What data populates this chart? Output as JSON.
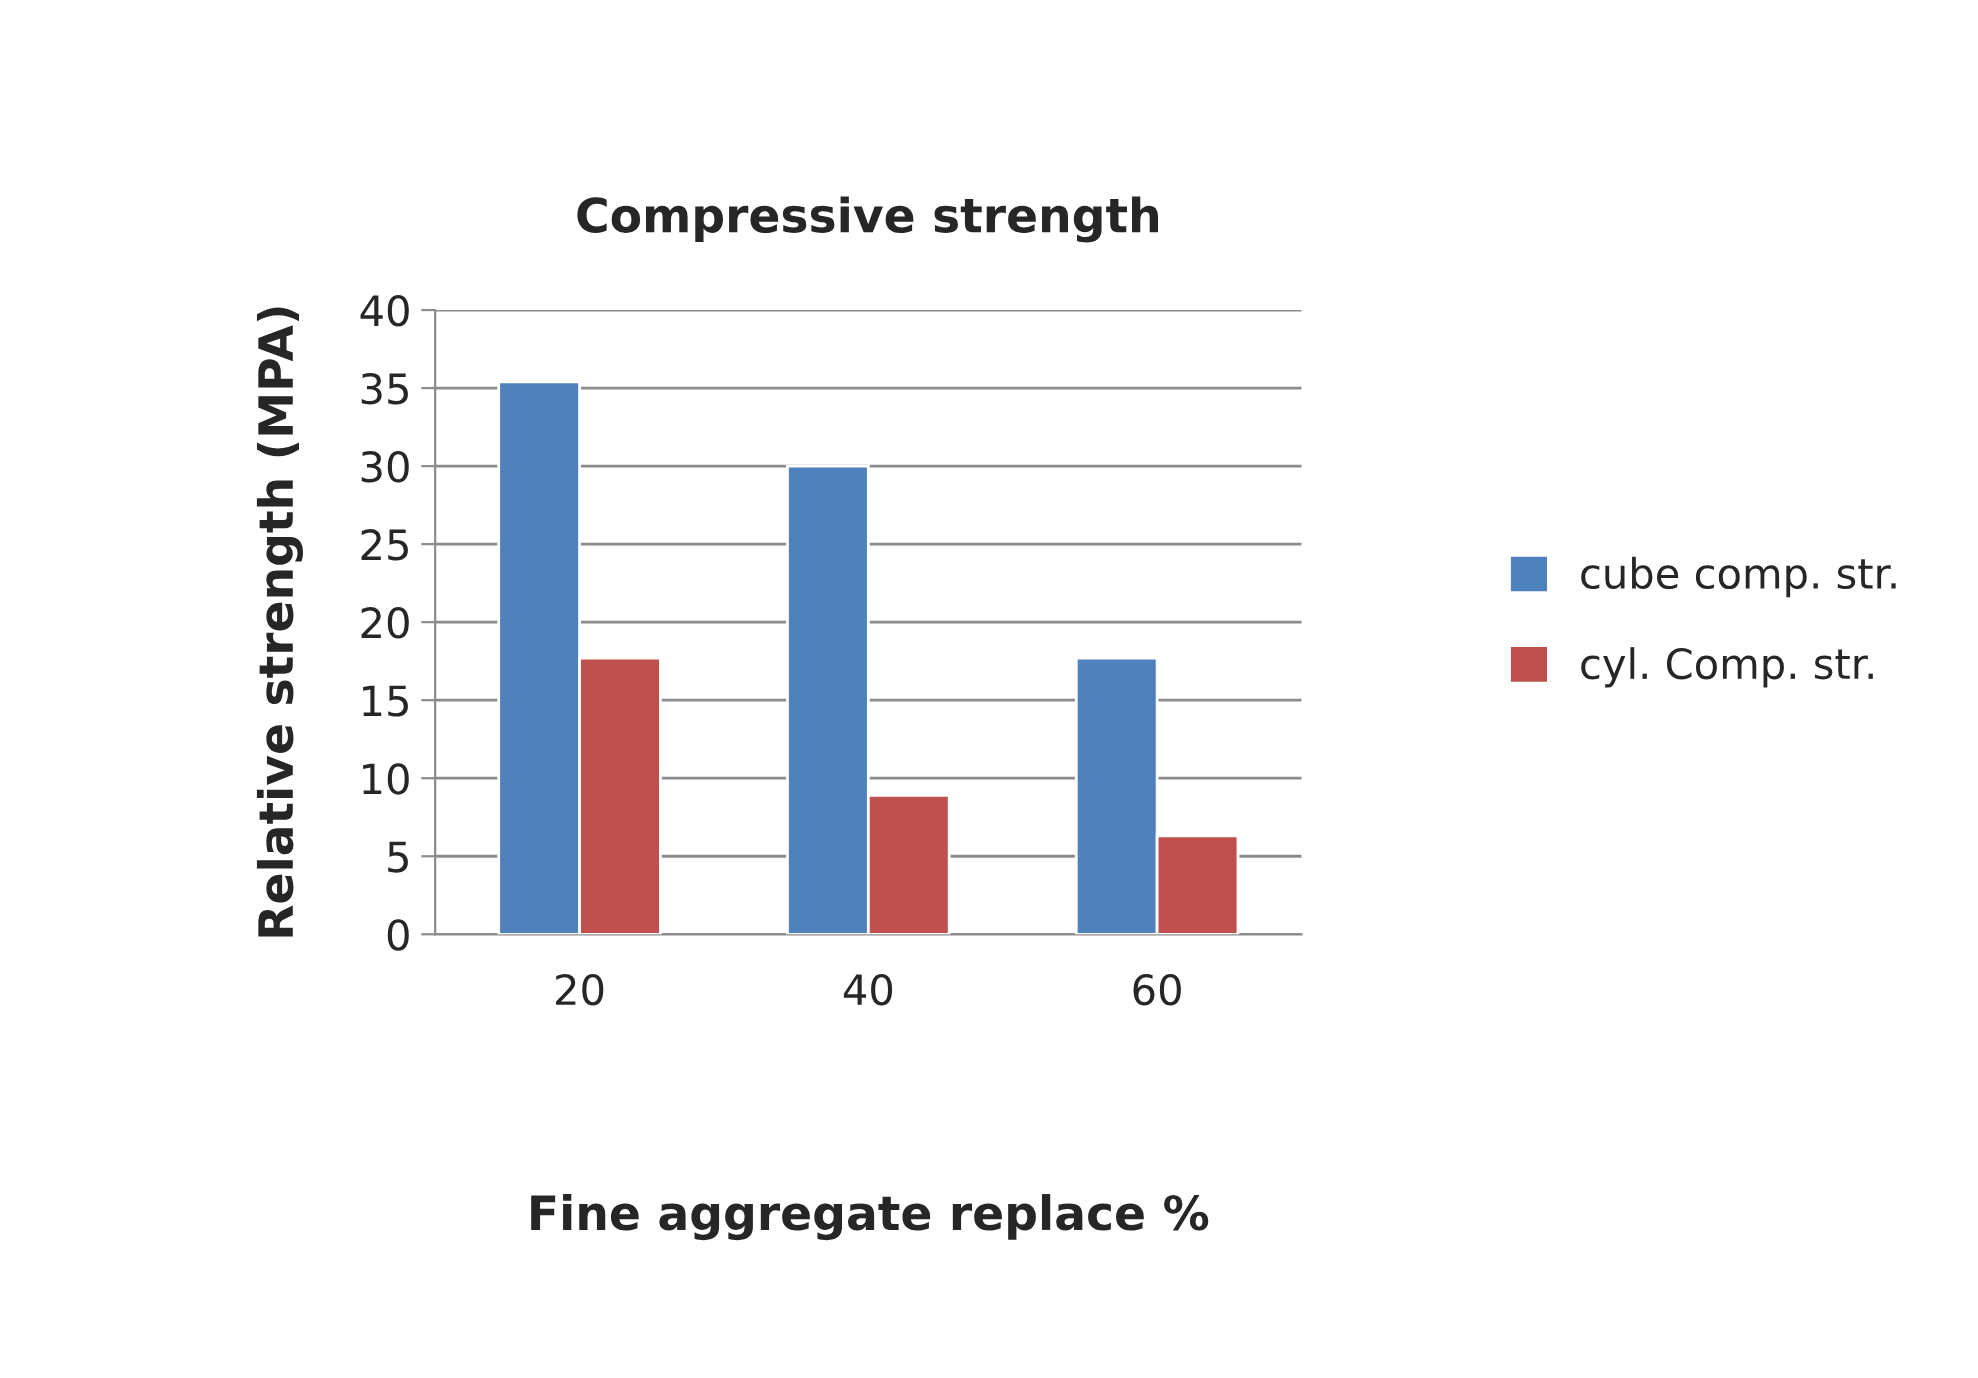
{
  "chart_data": {
    "type": "bar",
    "title": "Compressive strength",
    "xlabel": "Fine aggregate replace %",
    "ylabel": "Relative strength (MPA)",
    "categories": [
      "20",
      "40",
      "60"
    ],
    "series": [
      {
        "name": "cube comp. str.",
        "color": "#4f81bd",
        "values": [
          35.4,
          30,
          17.7
        ]
      },
      {
        "name": "cyl. Comp. str.",
        "color": "#c0504d",
        "values": [
          17.7,
          8.9,
          6.3
        ]
      }
    ],
    "ylim": [
      0,
      40
    ],
    "yticks": [
      0,
      5,
      10,
      15,
      20,
      25,
      30,
      35,
      40
    ],
    "grid": "y",
    "legend": "right"
  }
}
